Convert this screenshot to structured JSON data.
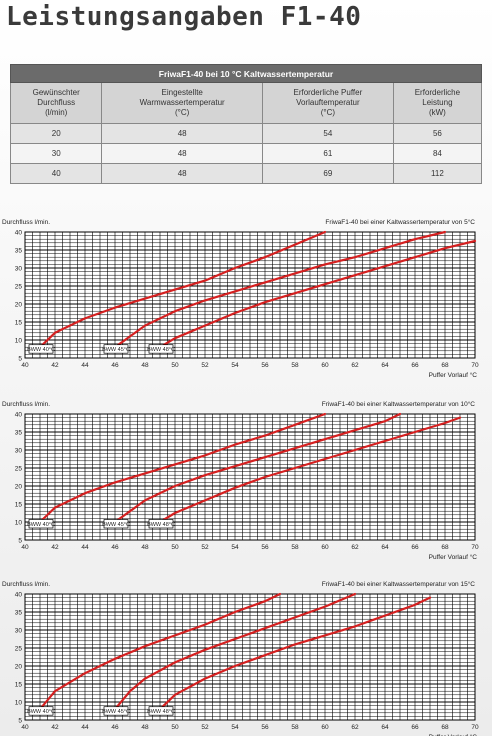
{
  "page_title": "Leistungsangaben F1-40",
  "table": {
    "caption": "FriwaF1-40 bei 10 °C Kaltwassertemperatur",
    "headers": [
      "Gewünschter\nDurchfluss\n(l/min)",
      "Eingestellte\nWarmwassertemperatur\n(°C)",
      "Erforderliche Puffer\nVorlauftemperatur\n(°C)",
      "Erforderliche\nLeistung\n(kW)"
    ],
    "rows": [
      [
        "20",
        "48",
        "54",
        "56"
      ],
      [
        "30",
        "48",
        "61",
        "84"
      ],
      [
        "40",
        "48",
        "69",
        "112"
      ]
    ]
  },
  "chart_data": [
    {
      "type": "line",
      "title": "FriwaF1-40 bei einer Kaltwassertemperatur von 5°C",
      "ylabel": "Durchfluss l/min.",
      "xlabel": "Puffer Vorlauf °C",
      "xlim": [
        40,
        70
      ],
      "ylim": [
        5,
        40
      ],
      "x_ticks": [
        "40",
        "42",
        "44",
        "46",
        "48",
        "50",
        "52",
        "54",
        "56",
        "58",
        "60",
        "62",
        "64",
        "66",
        "68",
        "70"
      ],
      "y_ticks": [
        "5",
        "10",
        "15",
        "20",
        "25",
        "30",
        "35",
        "40"
      ],
      "line_color": "#d42020",
      "series": [
        {
          "name": "BWW 40°C",
          "points": [
            [
              41,
              8
            ],
            [
              42,
              12
            ],
            [
              44,
              16
            ],
            [
              46,
              19
            ],
            [
              48,
              21.5
            ],
            [
              50,
              24
            ],
            [
              52,
              26.5
            ],
            [
              54,
              30
            ],
            [
              56,
              33
            ],
            [
              58,
              36.5
            ],
            [
              60,
              40
            ]
          ]
        },
        {
          "name": "BWW 45°C",
          "points": [
            [
              46,
              8
            ],
            [
              47,
              11
            ],
            [
              48,
              14
            ],
            [
              50,
              18
            ],
            [
              52,
              21
            ],
            [
              54,
              23.5
            ],
            [
              56,
              26
            ],
            [
              58,
              28.5
            ],
            [
              60,
              31
            ],
            [
              62,
              33
            ],
            [
              64,
              35.5
            ],
            [
              66,
              38
            ],
            [
              68,
              40
            ]
          ]
        },
        {
          "name": "BWW 48°C",
          "points": [
            [
              49,
              8
            ],
            [
              50,
              10.5
            ],
            [
              52,
              14
            ],
            [
              54,
              17.5
            ],
            [
              56,
              20.5
            ],
            [
              58,
              23
            ],
            [
              60,
              25.5
            ],
            [
              62,
              28
            ],
            [
              64,
              30.5
            ],
            [
              66,
              33
            ],
            [
              68,
              35.5
            ],
            [
              70,
              37.5
            ]
          ]
        }
      ]
    },
    {
      "type": "line",
      "title": "FriwaF1-40 bei einer Kaltwassertemperatur von 10°C",
      "ylabel": "Durchfluss l/min.",
      "xlabel": "Puffer Vorlauf °C",
      "xlim": [
        40,
        70
      ],
      "ylim": [
        5,
        40
      ],
      "x_ticks": [
        "40",
        "42",
        "44",
        "46",
        "48",
        "50",
        "52",
        "54",
        "56",
        "58",
        "60",
        "62",
        "64",
        "66",
        "68",
        "70"
      ],
      "y_ticks": [
        "5",
        "10",
        "15",
        "20",
        "25",
        "30",
        "35",
        "40"
      ],
      "line_color": "#d42020",
      "series": [
        {
          "name": "BWW 40°C",
          "points": [
            [
              41,
              10
            ],
            [
              42,
              14
            ],
            [
              44,
              18
            ],
            [
              46,
              21
            ],
            [
              48,
              23.5
            ],
            [
              50,
              26
            ],
            [
              52,
              28.5
            ],
            [
              54,
              31.5
            ],
            [
              56,
              34
            ],
            [
              58,
              37
            ],
            [
              60,
              40
            ]
          ]
        },
        {
          "name": "BWW 45°C",
          "points": [
            [
              46,
              10
            ],
            [
              47,
              13
            ],
            [
              48,
              16
            ],
            [
              50,
              20
            ],
            [
              52,
              23
            ],
            [
              54,
              25.5
            ],
            [
              56,
              28
            ],
            [
              58,
              30.5
            ],
            [
              60,
              33
            ],
            [
              62,
              35.5
            ],
            [
              64,
              38
            ],
            [
              65,
              40
            ]
          ]
        },
        {
          "name": "BWW 48°C",
          "points": [
            [
              49,
              10
            ],
            [
              50,
              12.5
            ],
            [
              52,
              16
            ],
            [
              54,
              19.5
            ],
            [
              56,
              22.5
            ],
            [
              58,
              25
            ],
            [
              60,
              27.5
            ],
            [
              62,
              30
            ],
            [
              64,
              32.5
            ],
            [
              66,
              35
            ],
            [
              68,
              37.5
            ],
            [
              69,
              39
            ]
          ]
        }
      ]
    },
    {
      "type": "line",
      "title": "FriwaF1-40 bei einer Kaltwassertemperatur von 15°C",
      "ylabel": "Durchfluss l/min.",
      "xlabel": "Puffer Vorlauf °C",
      "xlim": [
        40,
        70
      ],
      "ylim": [
        5,
        40
      ],
      "x_ticks": [
        "40",
        "42",
        "44",
        "46",
        "48",
        "50",
        "52",
        "54",
        "56",
        "58",
        "60",
        "62",
        "64",
        "66",
        "68",
        "70"
      ],
      "y_ticks": [
        "5",
        "10",
        "15",
        "20",
        "25",
        "30",
        "35",
        "40"
      ],
      "line_color": "#d42020",
      "series": [
        {
          "name": "BWW 40°C",
          "points": [
            [
              41,
              8
            ],
            [
              42,
              13
            ],
            [
              44,
              18
            ],
            [
              46,
              22
            ],
            [
              48,
              25.5
            ],
            [
              50,
              28.5
            ],
            [
              52,
              31.5
            ],
            [
              54,
              35
            ],
            [
              56,
              38
            ],
            [
              57,
              40
            ]
          ]
        },
        {
          "name": "BWW 45°C",
          "points": [
            [
              46,
              8
            ],
            [
              47,
              13
            ],
            [
              48,
              16.5
            ],
            [
              50,
              21
            ],
            [
              52,
              24.5
            ],
            [
              54,
              27.5
            ],
            [
              56,
              30.5
            ],
            [
              58,
              33.5
            ],
            [
              60,
              36.5
            ],
            [
              62,
              40
            ]
          ]
        },
        {
          "name": "BWW 48°C",
          "points": [
            [
              49,
              8
            ],
            [
              50,
              12
            ],
            [
              52,
              16.5
            ],
            [
              54,
              20
            ],
            [
              56,
              23
            ],
            [
              58,
              26
            ],
            [
              60,
              28.5
            ],
            [
              62,
              31
            ],
            [
              64,
              34
            ],
            [
              66,
              37
            ],
            [
              67,
              39
            ]
          ]
        }
      ]
    }
  ]
}
